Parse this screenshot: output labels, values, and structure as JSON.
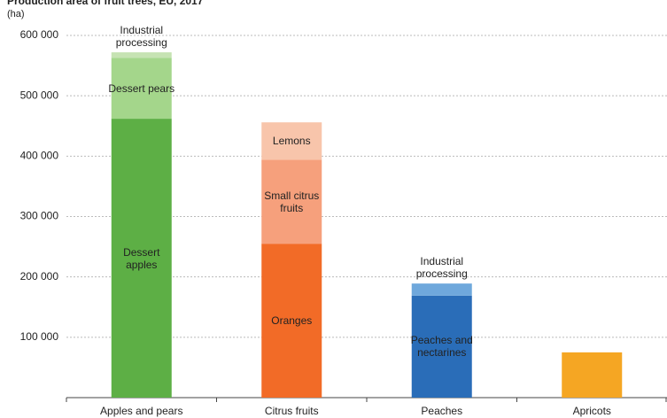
{
  "chart_data": {
    "type": "stacked_bar",
    "title": "Production area of fruit trees, EU, 2017",
    "y_unit": "(ha)",
    "categories": [
      "Apples and pears",
      "Citrus fruits",
      "Peaches",
      "Apricots"
    ],
    "segments": [
      [
        {
          "label": "Dessert apples",
          "color": "#5daf45",
          "value": 462000
        },
        {
          "label": "Dessert pears",
          "color": "#a4d68b",
          "value": 101000
        },
        {
          "label": "Industrial processing",
          "color": "#c6e3b3",
          "value": 9000
        }
      ],
      [
        {
          "label": "Oranges",
          "color": "#f26b27",
          "value": 255000
        },
        {
          "label": "Small citrus fruits",
          "color": "#f6a07c",
          "value": 139000
        },
        {
          "label": "Lemons",
          "color": "#f8c5ab",
          "value": 62000
        }
      ],
      [
        {
          "label": "Peaches and nectarines",
          "color": "#2a6db8",
          "value": 169000
        },
        {
          "label": "Industrial processing",
          "color": "#6fa8dc",
          "value": 20000
        }
      ],
      [
        {
          "color": "#f5a623",
          "value": 75000
        }
      ]
    ],
    "ylim": [
      0,
      600000
    ],
    "yticks": [
      {
        "value": 0,
        "label": ""
      },
      {
        "value": 100000,
        "label": "100 000"
      },
      {
        "value": 200000,
        "label": "200 000"
      },
      {
        "value": 300000,
        "label": "300 000"
      },
      {
        "value": 400000,
        "label": "400 000"
      },
      {
        "value": 500000,
        "label": "500 000"
      },
      {
        "value": 600000,
        "label": "600 000"
      }
    ],
    "grid": true
  }
}
